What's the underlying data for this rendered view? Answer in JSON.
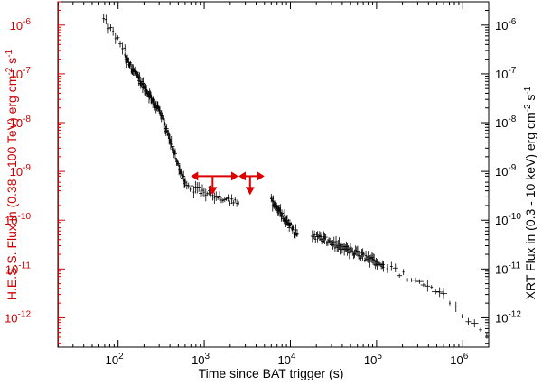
{
  "chart_data": {
    "type": "scatter",
    "xlabel": "Time since BAT trigger (s)",
    "ylabel_left": "H.E.S.S. Flux in (0.38 - 100 TeV) erg cm^-2 s^-1",
    "ylabel_right": "XRT Flux in (0.3 - 10 keV) erg cm^-2 s^-1",
    "x_scale": "log",
    "y_scale": "log",
    "xlim": [
      20,
      2000000
    ],
    "ylim": [
      2.5e-13,
      3e-06
    ],
    "grid": false,
    "colors": {
      "hess": "#dd0000",
      "xrt": "#000000",
      "left_axis": "#cc0000",
      "right_axis": "#000000"
    },
    "x_ticks": [
      {
        "value": 100,
        "base": "10",
        "exp": "2"
      },
      {
        "value": 1000,
        "base": "10",
        "exp": "3"
      },
      {
        "value": 10000,
        "base": "10",
        "exp": "4"
      },
      {
        "value": 100000,
        "base": "10",
        "exp": "5"
      },
      {
        "value": 1000000,
        "base": "10",
        "exp": "6"
      }
    ],
    "y_ticks": [
      {
        "value": 1e-06,
        "base": "10",
        "exp": "-6"
      },
      {
        "value": 1e-07,
        "base": "10",
        "exp": "-7"
      },
      {
        "value": 1e-08,
        "base": "10",
        "exp": "-8"
      },
      {
        "value": 1e-09,
        "base": "10",
        "exp": "-9"
      },
      {
        "value": 1e-10,
        "base": "10",
        "exp": "-10"
      },
      {
        "value": 1e-11,
        "base": "10",
        "exp": "-11"
      },
      {
        "value": 1e-12,
        "base": "10",
        "exp": "-12"
      }
    ],
    "hess_upper_limits": [
      {
        "x_low": 700,
        "x_high": 2500,
        "x_center": 1250,
        "y": 8e-10
      },
      {
        "x_low": 2500,
        "x_high": 5000,
        "x_center": 3400,
        "y": 8e-10
      }
    ],
    "xrt_segments": [
      {
        "t_start": 68,
        "t_end": 120,
        "f_start": 1.3e-06,
        "f_end": 3e-07,
        "n": 10
      },
      {
        "t_start": 120,
        "t_end": 300,
        "f_start": 2.2e-07,
        "f_end": 1.8e-08,
        "n": 55
      },
      {
        "t_start": 300,
        "t_end": 600,
        "f_start": 1.8e-08,
        "f_end": 5.5e-10,
        "n": 35
      },
      {
        "t_start": 600,
        "t_end": 2500,
        "f_start": 5e-10,
        "f_end": 2.3e-10,
        "n": 32
      },
      {
        "t_start": 6000,
        "t_end": 12000,
        "f_start": 2.5e-10,
        "f_end": 5e-11,
        "n": 40
      },
      {
        "t_start": 18000,
        "t_end": 120000,
        "f_start": 5e-11,
        "f_end": 1.2e-11,
        "n": 70
      },
      {
        "t_start": 120000,
        "t_end": 600000,
        "f_start": 1.2e-11,
        "f_end": 3e-12,
        "n": 16
      },
      {
        "t_start": 600000,
        "t_end": 1900000,
        "f_start": 3e-12,
        "f_end": 4e-13,
        "n": 8
      }
    ]
  }
}
